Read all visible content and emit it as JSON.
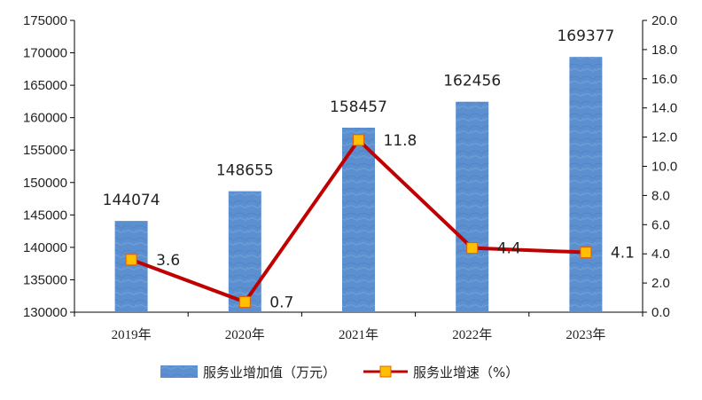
{
  "chart_data": {
    "type": "bar",
    "categories": [
      "2019年",
      "2020年",
      "2021年",
      "2022年",
      "2023年"
    ],
    "series": [
      {
        "name": "服务业增加值（万元）",
        "type": "bar",
        "axis": "left",
        "values": [
          144074,
          148655,
          158457,
          162456,
          169377
        ],
        "color": "#5b8fcf"
      },
      {
        "name": "服务业增速（%）",
        "type": "line",
        "axis": "right",
        "values": [
          3.6,
          0.7,
          11.8,
          4.4,
          4.1
        ],
        "color": "#c00000",
        "marker_color": "#ffc000"
      }
    ],
    "ylim_left": [
      130000,
      175000
    ],
    "yticks_left": [
      130000,
      135000,
      140000,
      145000,
      150000,
      155000,
      160000,
      165000,
      170000,
      175000
    ],
    "ylim_right": [
      0,
      20
    ],
    "yticks_right": [
      "0.0",
      "2.0",
      "4.0",
      "6.0",
      "8.0",
      "10.0",
      "12.0",
      "14.0",
      "16.0",
      "18.0",
      "20.0"
    ],
    "grid": false,
    "legend_position": "bottom",
    "xlabel": "",
    "ylabel": ""
  }
}
